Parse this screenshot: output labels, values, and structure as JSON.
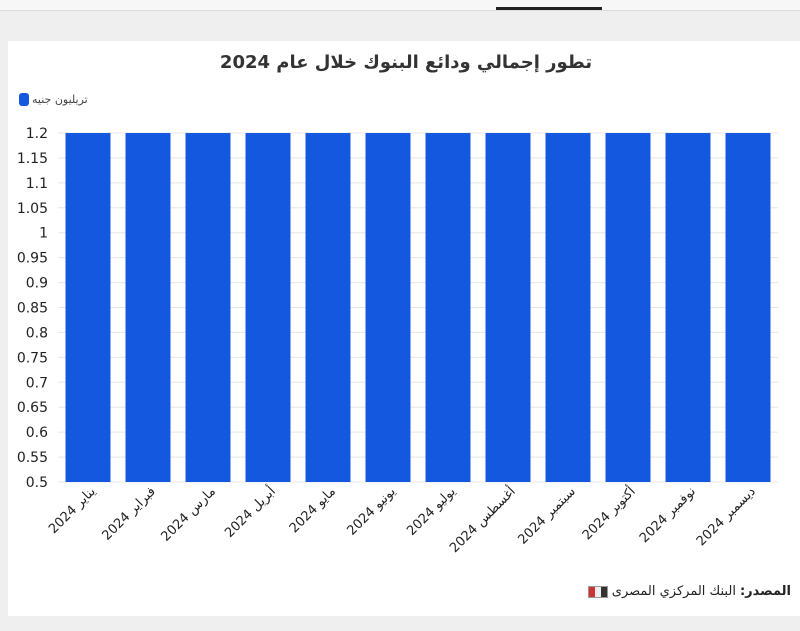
{
  "chart_data": {
    "type": "bar",
    "title": "تطور إجمالي ودائع البنوك خلال عام 2024",
    "categories": [
      "يناير 2024",
      "فبراير 2024",
      "مارس 2024",
      "أبريل 2024",
      "مايو 2024",
      "يونيو 2024",
      "يوليو 2024",
      "أغسطس 2024",
      "سبتمبر 2024",
      "أكتوبر 2024",
      "نوفمبر 2024",
      "ديسمبر 2024"
    ],
    "series": [
      {
        "name": "تريليون جنيه",
        "values": [
          1.2,
          1.2,
          1.2,
          1.2,
          1.2,
          1.2,
          1.2,
          1.2,
          1.2,
          1.2,
          1.2,
          1.2
        ],
        "color": "#1558e0"
      }
    ],
    "yticks": [
      "0.5",
      "0.55",
      "0.6",
      "0.65",
      "0.7",
      "0.75",
      "0.8",
      "0.85",
      "0.9",
      "0.95",
      "1",
      "1.05",
      "1.1",
      "1.15",
      "1.2"
    ],
    "ylim": [
      0.5,
      1.2
    ],
    "grid": true,
    "legend_position": "top-left"
  },
  "source": {
    "label": "المصدر:",
    "text": "البنك المركزي المصرى",
    "logo_icon": "source-logo-icon"
  }
}
